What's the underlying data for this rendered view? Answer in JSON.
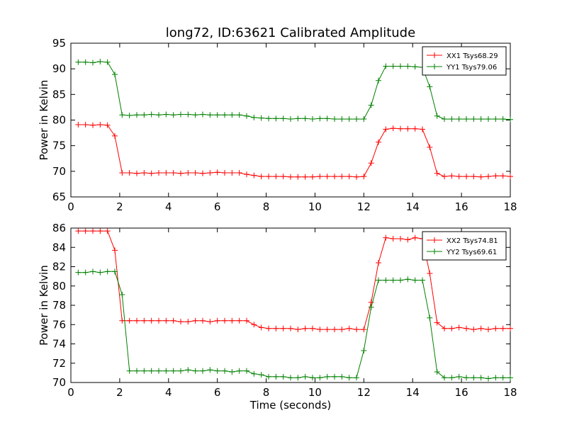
{
  "figure": {
    "title": "long72, ID:63621 Calibrated Amplitude"
  },
  "chart_data": [
    {
      "type": "line",
      "title": "long72, ID:63621 Calibrated Amplitude",
      "xlabel": "",
      "ylabel": "Power in Kelvin",
      "xlim": [
        0,
        18
      ],
      "ylim": [
        65,
        95
      ],
      "xticks": [
        "0",
        "2",
        "4",
        "6",
        "8",
        "10",
        "12",
        "14",
        "16",
        "18"
      ],
      "yticks": [
        "65",
        "70",
        "75",
        "80",
        "85",
        "90",
        "95"
      ],
      "grid": false,
      "legend_position": "top-right",
      "x": [
        0.3,
        0.6,
        0.9,
        1.2,
        1.5,
        1.8,
        2.1,
        2.4,
        2.7,
        3.0,
        3.3,
        3.6,
        3.9,
        4.2,
        4.5,
        4.8,
        5.1,
        5.4,
        5.7,
        6.0,
        6.3,
        6.6,
        6.9,
        7.2,
        7.5,
        7.8,
        8.1,
        8.4,
        8.7,
        9.0,
        9.3,
        9.6,
        9.9,
        10.2,
        10.5,
        10.8,
        11.1,
        11.4,
        11.7,
        12.0,
        12.3,
        12.6,
        12.9,
        13.2,
        13.5,
        13.8,
        14.1,
        14.4,
        14.7,
        15.0,
        15.3,
        15.6,
        15.9,
        16.2,
        16.5,
        16.8,
        17.1,
        17.4,
        17.7,
        18.0
      ],
      "series": [
        {
          "name": "XX1 Tsys68.29",
          "color": "#ff0000",
          "values": [
            79.1,
            79.1,
            79.0,
            79.1,
            79.0,
            76.9,
            69.7,
            69.7,
            69.6,
            69.7,
            69.6,
            69.7,
            69.7,
            69.7,
            69.6,
            69.7,
            69.7,
            69.6,
            69.7,
            69.8,
            69.7,
            69.7,
            69.7,
            69.4,
            69.2,
            69.0,
            69.0,
            69.0,
            69.0,
            68.9,
            68.9,
            68.9,
            68.9,
            69.0,
            69.0,
            69.0,
            69.0,
            69.0,
            68.9,
            69.0,
            71.6,
            75.7,
            78.2,
            78.4,
            78.3,
            78.3,
            78.3,
            78.2,
            74.7,
            69.6,
            69.0,
            69.1,
            69.0,
            69.0,
            69.0,
            68.9,
            69.0,
            69.1,
            69.1,
            69.0
          ]
        },
        {
          "name": "YY1 Tsys79.06",
          "color": "#008000",
          "values": [
            91.3,
            91.3,
            91.2,
            91.4,
            91.3,
            88.9,
            81.0,
            80.9,
            81.0,
            81.0,
            81.1,
            81.0,
            81.1,
            81.0,
            81.1,
            81.1,
            81.0,
            81.1,
            81.0,
            81.0,
            81.0,
            81.0,
            81.0,
            80.8,
            80.5,
            80.4,
            80.3,
            80.3,
            80.3,
            80.2,
            80.3,
            80.3,
            80.2,
            80.3,
            80.3,
            80.2,
            80.2,
            80.2,
            80.2,
            80.2,
            82.9,
            87.7,
            90.5,
            90.5,
            90.5,
            90.5,
            90.4,
            90.3,
            86.5,
            80.8,
            80.2,
            80.2,
            80.2,
            80.2,
            80.2,
            80.2,
            80.2,
            80.2,
            80.2,
            80.1
          ]
        }
      ]
    },
    {
      "type": "line",
      "title": "",
      "xlabel": "Time (seconds)",
      "ylabel": "Power in Kelvin",
      "xlim": [
        0,
        18
      ],
      "ylim": [
        70,
        86
      ],
      "xticks": [
        "0",
        "2",
        "4",
        "6",
        "8",
        "10",
        "12",
        "14",
        "16",
        "18"
      ],
      "yticks": [
        "70",
        "72",
        "74",
        "76",
        "78",
        "80",
        "82",
        "84",
        "86"
      ],
      "grid": false,
      "legend_position": "top-right",
      "x": [
        0.3,
        0.6,
        0.9,
        1.2,
        1.5,
        1.8,
        2.1,
        2.4,
        2.7,
        3.0,
        3.3,
        3.6,
        3.9,
        4.2,
        4.5,
        4.8,
        5.1,
        5.4,
        5.7,
        6.0,
        6.3,
        6.6,
        6.9,
        7.2,
        7.5,
        7.8,
        8.1,
        8.4,
        8.7,
        9.0,
        9.3,
        9.6,
        9.9,
        10.2,
        10.5,
        10.8,
        11.1,
        11.4,
        11.7,
        12.0,
        12.3,
        12.6,
        12.9,
        13.2,
        13.5,
        13.8,
        14.1,
        14.4,
        14.7,
        15.0,
        15.3,
        15.6,
        15.9,
        16.2,
        16.5,
        16.8,
        17.1,
        17.4,
        17.7,
        18.0
      ],
      "series": [
        {
          "name": "XX2 Tsys74.81",
          "color": "#ff0000",
          "values": [
            85.7,
            85.7,
            85.7,
            85.7,
            85.7,
            83.7,
            76.4,
            76.4,
            76.4,
            76.4,
            76.4,
            76.4,
            76.4,
            76.4,
            76.3,
            76.3,
            76.4,
            76.4,
            76.3,
            76.4,
            76.4,
            76.4,
            76.4,
            76.4,
            76.0,
            75.7,
            75.6,
            75.6,
            75.6,
            75.6,
            75.5,
            75.6,
            75.6,
            75.5,
            75.5,
            75.5,
            75.5,
            75.6,
            75.5,
            75.5,
            78.3,
            82.4,
            85.0,
            84.9,
            84.9,
            84.8,
            85.0,
            84.9,
            81.3,
            76.2,
            75.6,
            75.6,
            75.7,
            75.6,
            75.5,
            75.6,
            75.5,
            75.6,
            75.6,
            75.6
          ]
        },
        {
          "name": "YY2 Tsys69.61",
          "color": "#008000",
          "values": [
            81.4,
            81.4,
            81.5,
            81.4,
            81.5,
            81.5,
            79.1,
            71.2,
            71.2,
            71.2,
            71.2,
            71.2,
            71.2,
            71.2,
            71.2,
            71.3,
            71.2,
            71.2,
            71.3,
            71.2,
            71.2,
            71.1,
            71.2,
            71.2,
            70.9,
            70.8,
            70.6,
            70.6,
            70.6,
            70.5,
            70.5,
            70.6,
            70.5,
            70.5,
            70.6,
            70.6,
            70.6,
            70.5,
            70.5,
            73.3,
            77.8,
            80.6,
            80.6,
            80.6,
            80.6,
            80.7,
            80.6,
            80.6,
            76.7,
            71.1,
            70.5,
            70.5,
            70.6,
            70.5,
            70.5,
            70.5,
            70.4,
            70.5,
            70.5,
            70.5
          ]
        }
      ]
    }
  ]
}
